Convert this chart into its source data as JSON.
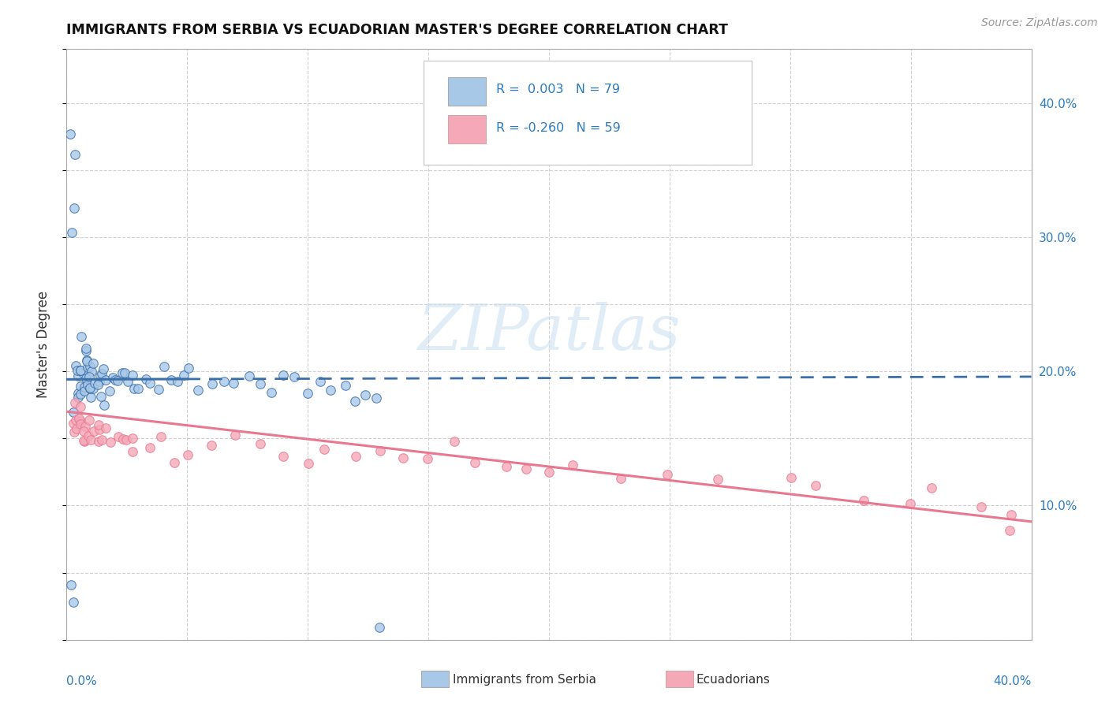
{
  "title": "IMMIGRANTS FROM SERBIA VS ECUADORIAN MASTER'S DEGREE CORRELATION CHART",
  "source": "Source: ZipAtlas.com",
  "ylabel": "Master's Degree",
  "legend_label1": "Immigrants from Serbia",
  "legend_label2": "Ecuadorians",
  "legend_r1": "R =  0.003",
  "legend_n1": "N = 79",
  "legend_r2": "R = -0.260",
  "legend_n2": "N = 59",
  "color_blue": "#a8c8e8",
  "color_pink": "#f4a8b8",
  "color_blue_line": "#3a6faa",
  "color_pink_line": "#e87890",
  "color_text_blue": "#2a7ac0",
  "color_text_dark": "#333333",
  "xlim": [
    0.0,
    0.4
  ],
  "ylim": [
    0.0,
    0.44
  ],
  "watermark": "ZIPatlas",
  "serbia_x": [
    0.002,
    0.003,
    0.003,
    0.003,
    0.004,
    0.004,
    0.004,
    0.005,
    0.005,
    0.005,
    0.005,
    0.006,
    0.006,
    0.006,
    0.006,
    0.006,
    0.007,
    0.007,
    0.007,
    0.008,
    0.008,
    0.008,
    0.008,
    0.009,
    0.009,
    0.009,
    0.01,
    0.01,
    0.01,
    0.01,
    0.011,
    0.011,
    0.012,
    0.012,
    0.013,
    0.013,
    0.014,
    0.014,
    0.015,
    0.015,
    0.016,
    0.017,
    0.018,
    0.019,
    0.02,
    0.021,
    0.022,
    0.024,
    0.025,
    0.027,
    0.028,
    0.03,
    0.032,
    0.035,
    0.038,
    0.04,
    0.043,
    0.045,
    0.048,
    0.05,
    0.055,
    0.06,
    0.065,
    0.07,
    0.075,
    0.08,
    0.085,
    0.09,
    0.095,
    0.1,
    0.105,
    0.11,
    0.115,
    0.12,
    0.125,
    0.128,
    0.002,
    0.003,
    0.13
  ],
  "serbia_y": [
    0.385,
    0.355,
    0.325,
    0.295,
    0.2,
    0.185,
    0.175,
    0.2,
    0.195,
    0.19,
    0.18,
    0.22,
    0.205,
    0.2,
    0.195,
    0.185,
    0.21,
    0.2,
    0.195,
    0.215,
    0.21,
    0.2,
    0.195,
    0.2,
    0.195,
    0.19,
    0.2,
    0.195,
    0.19,
    0.185,
    0.195,
    0.19,
    0.2,
    0.195,
    0.19,
    0.185,
    0.195,
    0.188,
    0.2,
    0.192,
    0.185,
    0.195,
    0.188,
    0.195,
    0.19,
    0.185,
    0.2,
    0.195,
    0.19,
    0.185,
    0.2,
    0.192,
    0.2,
    0.195,
    0.185,
    0.2,
    0.192,
    0.195,
    0.188,
    0.195,
    0.188,
    0.195,
    0.192,
    0.185,
    0.195,
    0.188,
    0.185,
    0.195,
    0.188,
    0.185,
    0.192,
    0.185,
    0.188,
    0.185,
    0.192,
    0.185,
    0.04,
    0.025,
    0.012
  ],
  "ecuador_x": [
    0.002,
    0.003,
    0.003,
    0.004,
    0.004,
    0.005,
    0.005,
    0.006,
    0.006,
    0.007,
    0.007,
    0.008,
    0.008,
    0.009,
    0.01,
    0.01,
    0.011,
    0.012,
    0.013,
    0.014,
    0.015,
    0.016,
    0.018,
    0.02,
    0.022,
    0.025,
    0.028,
    0.03,
    0.035,
    0.04,
    0.045,
    0.05,
    0.06,
    0.07,
    0.08,
    0.09,
    0.1,
    0.11,
    0.12,
    0.13,
    0.14,
    0.15,
    0.16,
    0.17,
    0.18,
    0.19,
    0.2,
    0.21,
    0.23,
    0.25,
    0.27,
    0.3,
    0.31,
    0.33,
    0.35,
    0.36,
    0.38,
    0.39,
    0.39
  ],
  "ecuador_y": [
    0.175,
    0.165,
    0.155,
    0.17,
    0.16,
    0.175,
    0.165,
    0.16,
    0.155,
    0.165,
    0.155,
    0.165,
    0.155,
    0.16,
    0.16,
    0.15,
    0.155,
    0.155,
    0.15,
    0.155,
    0.15,
    0.155,
    0.148,
    0.15,
    0.148,
    0.148,
    0.145,
    0.148,
    0.145,
    0.148,
    0.143,
    0.145,
    0.143,
    0.143,
    0.142,
    0.14,
    0.14,
    0.138,
    0.137,
    0.138,
    0.135,
    0.135,
    0.133,
    0.132,
    0.13,
    0.128,
    0.128,
    0.125,
    0.122,
    0.12,
    0.118,
    0.115,
    0.113,
    0.11,
    0.108,
    0.106,
    0.102,
    0.1,
    0.085
  ]
}
